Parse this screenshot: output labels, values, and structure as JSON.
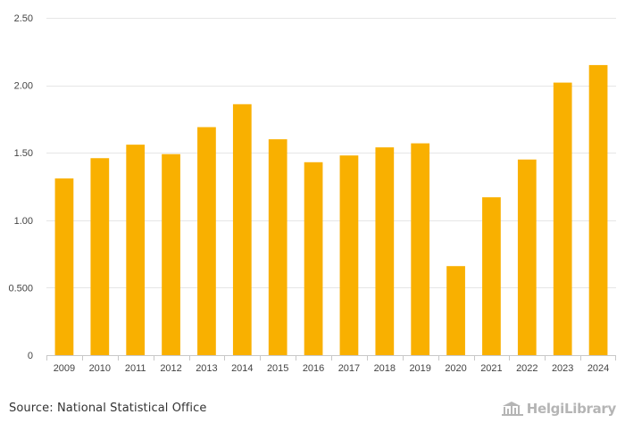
{
  "chart_data": {
    "type": "bar",
    "title": "",
    "xlabel": "",
    "ylabel": "",
    "categories": [
      "2009",
      "2010",
      "2011",
      "2012",
      "2013",
      "2014",
      "2015",
      "2016",
      "2017",
      "2018",
      "2019",
      "2020",
      "2021",
      "2022",
      "2023",
      "2024"
    ],
    "values": [
      1.31,
      1.46,
      1.56,
      1.49,
      1.69,
      1.86,
      1.6,
      1.43,
      1.48,
      1.54,
      1.57,
      0.66,
      1.17,
      1.45,
      2.02,
      2.15
    ],
    "ylim": [
      0,
      2.5
    ],
    "yticks": [
      0,
      0.5,
      1.0,
      1.5,
      2.0,
      2.5
    ],
    "ytick_labels": [
      "0",
      "0.500",
      "1.00",
      "1.50",
      "2.00",
      "2.50"
    ],
    "grid": true,
    "bar_color": "#f9b000"
  },
  "footer": {
    "source": "Source: National Statistical Office",
    "brand_name": "HelgiLibrary",
    "brand_logo_icon": "library-building-icon"
  }
}
